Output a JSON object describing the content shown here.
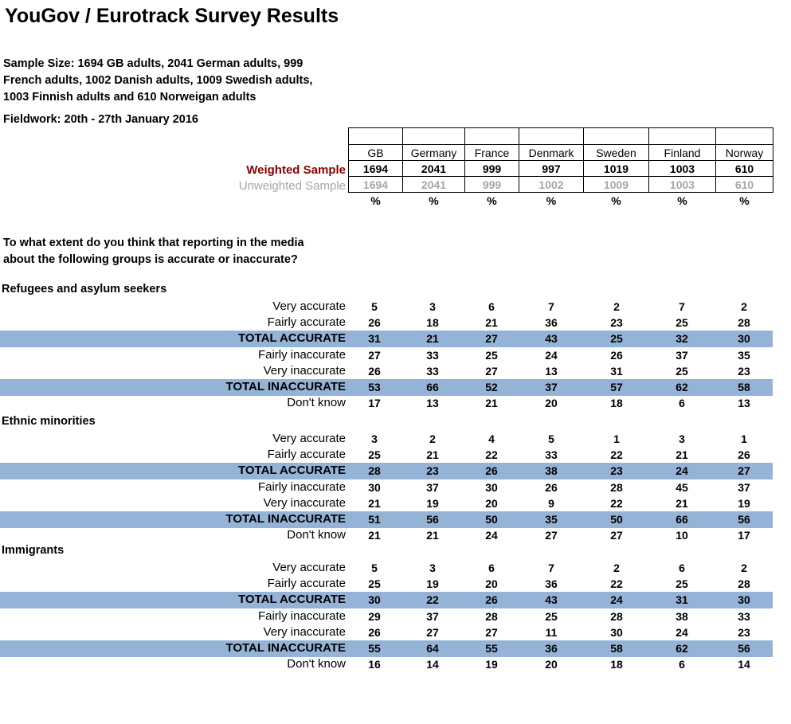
{
  "title": "YouGov / Eurotrack Survey Results",
  "sample_lines": [
    "Sample Size: 1694 GB adults, 2041 German adults, 999",
    "French adults, 1002 Danish adults, 1009 Swedish adults,",
    "1003 Finnish adults and 610 Norweigan adults"
  ],
  "fieldwork": "Fieldwork: 20th - 27th January 2016",
  "header": {
    "countries": [
      "GB",
      "Germany",
      "France",
      "Denmark",
      "Sweden",
      "Finland",
      "Norway"
    ],
    "weighted_label": "Weighted Sample",
    "weighted": [
      "1694",
      "2041",
      "999",
      "997",
      "1019",
      "1003",
      "610"
    ],
    "unweighted_label": "Unweighted Sample",
    "unweighted": [
      "1694",
      "2041",
      "999",
      "1002",
      "1009",
      "1003",
      "610"
    ],
    "pct": [
      "%",
      "%",
      "%",
      "%",
      "%",
      "%",
      "%"
    ]
  },
  "question_lines": [
    "To what extent do you think that reporting in the media",
    "about the following groups is accurate or inaccurate?"
  ],
  "sections": [
    {
      "title": "Refugees and asylum seekers",
      "rows": [
        {
          "label": "Very accurate",
          "total": false,
          "values": [
            "5",
            "3",
            "6",
            "7",
            "2",
            "7",
            "2"
          ]
        },
        {
          "label": "Fairly accurate",
          "total": false,
          "values": [
            "26",
            "18",
            "21",
            "36",
            "23",
            "25",
            "28"
          ]
        },
        {
          "label": "TOTAL ACCURATE",
          "total": true,
          "values": [
            "31",
            "21",
            "27",
            "43",
            "25",
            "32",
            "30"
          ]
        },
        {
          "label": "Fairly inaccurate",
          "total": false,
          "values": [
            "27",
            "33",
            "25",
            "24",
            "26",
            "37",
            "35"
          ]
        },
        {
          "label": "Very inaccurate",
          "total": false,
          "values": [
            "26",
            "33",
            "27",
            "13",
            "31",
            "25",
            "23"
          ]
        },
        {
          "label": "TOTAL INACCURATE",
          "total": true,
          "values": [
            "53",
            "66",
            "52",
            "37",
            "57",
            "62",
            "58"
          ]
        },
        {
          "label": "Don't know",
          "total": false,
          "values": [
            "17",
            "13",
            "21",
            "20",
            "18",
            "6",
            "13"
          ]
        }
      ]
    },
    {
      "title": "Ethnic minorities",
      "rows": [
        {
          "label": "Very accurate",
          "total": false,
          "values": [
            "3",
            "2",
            "4",
            "5",
            "1",
            "3",
            "1"
          ]
        },
        {
          "label": "Fairly accurate",
          "total": false,
          "values": [
            "25",
            "21",
            "22",
            "33",
            "22",
            "21",
            "26"
          ]
        },
        {
          "label": "TOTAL ACCURATE",
          "total": true,
          "values": [
            "28",
            "23",
            "26",
            "38",
            "23",
            "24",
            "27"
          ]
        },
        {
          "label": "Fairly inaccurate",
          "total": false,
          "values": [
            "30",
            "37",
            "30",
            "26",
            "28",
            "45",
            "37"
          ]
        },
        {
          "label": "Very inaccurate",
          "total": false,
          "values": [
            "21",
            "19",
            "20",
            "9",
            "22",
            "21",
            "19"
          ]
        },
        {
          "label": "TOTAL INACCURATE",
          "total": true,
          "values": [
            "51",
            "56",
            "50",
            "35",
            "50",
            "66",
            "56"
          ]
        },
        {
          "label": "Don't know",
          "total": false,
          "values": [
            "21",
            "21",
            "24",
            "27",
            "27",
            "10",
            "17"
          ]
        }
      ]
    },
    {
      "title": "Immigrants",
      "rows": [
        {
          "label": "Very accurate",
          "total": false,
          "values": [
            "5",
            "3",
            "6",
            "7",
            "2",
            "6",
            "2"
          ]
        },
        {
          "label": "Fairly accurate",
          "total": false,
          "values": [
            "25",
            "19",
            "20",
            "36",
            "22",
            "25",
            "28"
          ]
        },
        {
          "label": "TOTAL ACCURATE",
          "total": true,
          "values": [
            "30",
            "22",
            "26",
            "43",
            "24",
            "31",
            "30"
          ]
        },
        {
          "label": "Fairly inaccurate",
          "total": false,
          "values": [
            "29",
            "37",
            "28",
            "25",
            "28",
            "38",
            "33"
          ]
        },
        {
          "label": "Very inaccurate",
          "total": false,
          "values": [
            "26",
            "27",
            "27",
            "11",
            "30",
            "24",
            "23"
          ]
        },
        {
          "label": "TOTAL INACCURATE",
          "total": true,
          "values": [
            "55",
            "64",
            "55",
            "36",
            "58",
            "62",
            "56"
          ]
        },
        {
          "label": "Don't know",
          "total": false,
          "values": [
            "16",
            "14",
            "19",
            "20",
            "18",
            "6",
            "14"
          ]
        }
      ]
    }
  ]
}
